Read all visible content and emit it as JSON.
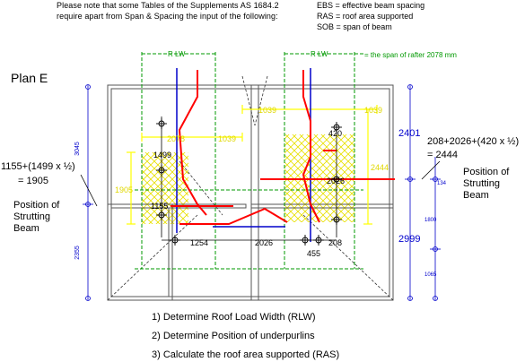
{
  "intro": {
    "line1": "Please note that some Tables of the Supplements  AS 1684.2",
    "line2": "require apart from Span & Spacing the input of the following:"
  },
  "abbreviations": [
    "EBS = effective beam spacing",
    "RAS = roof area supported",
    "SOB = span of beam"
  ],
  "plan_title": "Plan E",
  "rlw": {
    "label_left": "R LW",
    "label_right": "R LW",
    "note": "= the span of rafter 2078 mm"
  },
  "left_calc": {
    "line1": "1155+(1499 x ½)",
    "line2": "= 1905",
    "position_label": [
      "Position of",
      "Strutting",
      "Beam"
    ]
  },
  "right_calc": {
    "line1": "208+2026+(420 x ½)",
    "line2": "= 2444",
    "position_label": [
      "Position of",
      "Strutting",
      "Beam"
    ]
  },
  "dimensions": {
    "black": [
      "1499",
      "1155",
      "1254",
      "2026",
      "208",
      "455",
      "420",
      "2026"
    ],
    "yellow": [
      "2078",
      "1039",
      "1905",
      "1039",
      "1039",
      "2444"
    ],
    "blue_left": [
      "3045",
      "2355"
    ],
    "blue_right": [
      "2401",
      "2999",
      "134",
      "1800",
      "1065"
    ]
  },
  "steps": [
    "1) Determine Roof Load Width (RLW)",
    "2) Determine Position of underpurlins",
    "3) Calculate the roof area supported (RAS)"
  ],
  "colors": {
    "blue": "#0000cc",
    "red": "#ff0000",
    "green": "#009900",
    "yellow": "#ffff00",
    "wall": "#555555"
  }
}
